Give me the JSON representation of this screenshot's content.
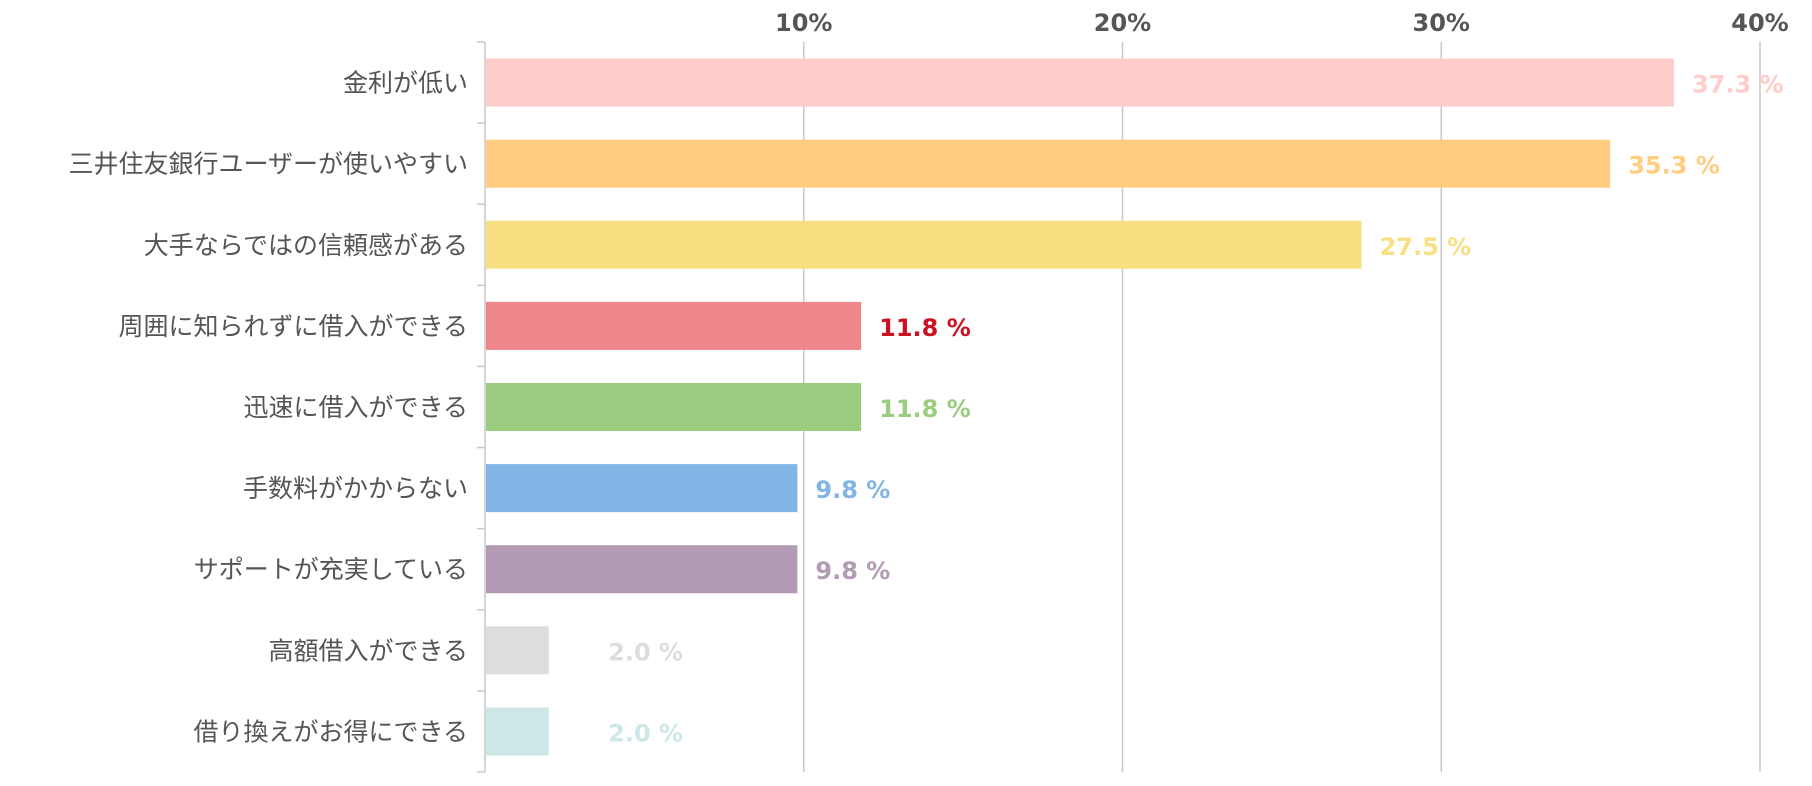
{
  "chart_data": {
    "type": "bar",
    "orientation": "horizontal",
    "categories": [
      "金利が低い",
      "三井住友銀行ユーザーが使いやすい",
      "大手ならではの信頼感がある",
      "周囲に知られずに借入ができる",
      "迅速に借入ができる",
      "手数料がかからない",
      "サポートが充実している",
      "高額借入ができる",
      "借り換えがお得にできる"
    ],
    "values": [
      37.3,
      35.3,
      27.5,
      11.8,
      11.8,
      9.8,
      9.8,
      2.0,
      2.0
    ],
    "value_labels": [
      "37.3 %",
      "35.3 %",
      "27.5 %",
      "11.8 %",
      "11.8 %",
      "9.8 %",
      "9.8 %",
      "2.0 %",
      "2.0 %"
    ],
    "bar_colors": [
      "#ffcccc",
      "#ffcc80",
      "#f8e082",
      "#ee868c",
      "#9bcd80",
      "#82b4e6",
      "#b39ab5",
      "#dddddd",
      "#cde6e6"
    ],
    "label_colors": [
      "#ffcccc",
      "#ffcc80",
      "#f8e082",
      "#cc1122",
      "#9bcd80",
      "#82b4e6",
      "#b39ab5",
      "#dddddd",
      "#cde6e6"
    ],
    "x_ticks": [
      10,
      20,
      30,
      40
    ],
    "x_tick_labels": [
      "10%",
      "20%",
      "30%",
      "40%"
    ],
    "xlim": [
      0,
      40
    ],
    "grid": true,
    "axis_position": "top"
  }
}
